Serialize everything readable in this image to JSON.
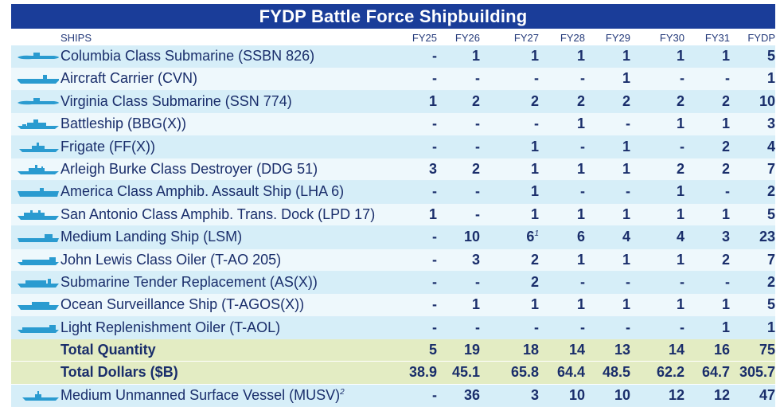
{
  "title": "FYDP Battle Force Shipbuilding",
  "header": {
    "ships": "SHIPS",
    "years": [
      "FY25",
      "FY26",
      "FY27",
      "FY28",
      "FY29",
      "FY30",
      "FY31",
      "FYDP"
    ]
  },
  "rows": [
    {
      "name": "Columbia Class Submarine (SSBN 826)",
      "icon": "submarine-icon",
      "values": [
        "-",
        "1",
        "1",
        "1",
        "1",
        "1",
        "1",
        "5"
      ]
    },
    {
      "name": "Aircraft Carrier (CVN)",
      "icon": "aircraft-carrier-icon",
      "values": [
        "-",
        "-",
        "-",
        "-",
        "1",
        "-",
        "-",
        "1"
      ]
    },
    {
      "name": "Virginia Class Submarine (SSN 774)",
      "icon": "submarine-icon",
      "values": [
        "1",
        "2",
        "2",
        "2",
        "2",
        "2",
        "2",
        "10"
      ]
    },
    {
      "name": "Battleship (BBG(X))",
      "icon": "battleship-icon",
      "values": [
        "-",
        "-",
        "-",
        "1",
        "-",
        "1",
        "1",
        "3"
      ]
    },
    {
      "name": "Frigate (FF(X))",
      "icon": "frigate-icon",
      "values": [
        "-",
        "-",
        "1",
        "-",
        "1",
        "-",
        "2",
        "4"
      ]
    },
    {
      "name": "Arleigh Burke Class Destroyer (DDG 51)",
      "icon": "destroyer-icon",
      "values": [
        "3",
        "2",
        "1",
        "1",
        "1",
        "2",
        "2",
        "7"
      ]
    },
    {
      "name": "America Class Amphib. Assault Ship (LHA 6)",
      "icon": "amphibious-assault-ship-icon",
      "values": [
        "-",
        "-",
        "1",
        "-",
        "-",
        "1",
        "-",
        "2"
      ]
    },
    {
      "name": "San Antonio Class Amphib. Trans. Dock (LPD 17)",
      "icon": "transport-dock-icon",
      "values": [
        "1",
        "-",
        "1",
        "1",
        "1",
        "1",
        "1",
        "5"
      ]
    },
    {
      "name": "Medium Landing Ship (LSM)",
      "icon": "landing-ship-icon",
      "values": [
        "-",
        "10",
        "6",
        "6",
        "4",
        "4",
        "3",
        "23"
      ],
      "note_col": 2,
      "note": "1"
    },
    {
      "name": "John Lewis Class Oiler (T-AO 205)",
      "icon": "oiler-icon",
      "values": [
        "-",
        "3",
        "2",
        "1",
        "1",
        "1",
        "2",
        "7"
      ]
    },
    {
      "name": "Submarine Tender Replacement (AS(X))",
      "icon": "submarine-tender-icon",
      "values": [
        "-",
        "-",
        "2",
        "-",
        "-",
        "-",
        "-",
        "2"
      ]
    },
    {
      "name": "Ocean Surveillance Ship (T-AGOS(X))",
      "icon": "surveillance-ship-icon",
      "values": [
        "-",
        "1",
        "1",
        "1",
        "1",
        "1",
        "1",
        "5"
      ]
    },
    {
      "name": "Light Replenishment Oiler (T-AOL)",
      "icon": "oiler-icon",
      "values": [
        "-",
        "-",
        "-",
        "-",
        "-",
        "-",
        "1",
        "1"
      ]
    }
  ],
  "totals": [
    {
      "name": "Total Quantity",
      "values": [
        "5",
        "19",
        "18",
        "14",
        "13",
        "14",
        "16",
        "75"
      ]
    },
    {
      "name": "Total Dollars ($B)",
      "values": [
        "38.9",
        "45.1",
        "65.8",
        "64.4",
        "48.5",
        "62.2",
        "64.7",
        "305.7"
      ]
    }
  ],
  "musv": {
    "name": "Medium Unmanned Surface Vessel (MUSV)",
    "note": "2",
    "icon": "unmanned-vessel-icon",
    "values": [
      "-",
      "36",
      "3",
      "10",
      "10",
      "12",
      "12",
      "47"
    ]
  },
  "colors": {
    "title_bg": "#1a3d99",
    "row_a": "#d6eef8",
    "row_b": "#eef8fc",
    "total_bg": "#e3ecc3",
    "text": "#1a2e6b",
    "icon": "#2a9bd0"
  }
}
